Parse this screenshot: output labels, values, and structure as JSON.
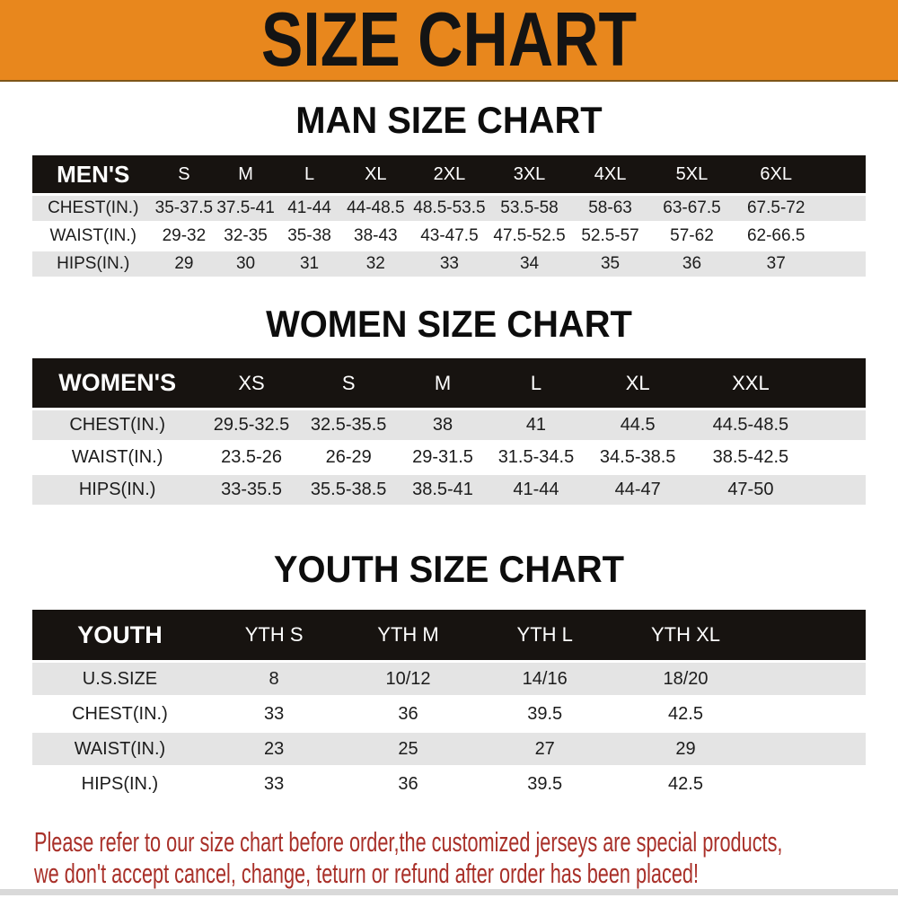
{
  "banner": {
    "title": "SIZE CHART"
  },
  "colors": {
    "banner_bg": "#e8871d",
    "banner_border": "#7d5518",
    "header_bar_bg": "#171310",
    "header_bar_text": "#ffffff",
    "row_alt_bg": "#e4e4e4",
    "body_text": "#1c1c1c",
    "notice_text": "#a93029",
    "bottom_strip": "#d9d9d9"
  },
  "sections": [
    {
      "id": "men",
      "title": "MAN SIZE CHART",
      "header": [
        "MEN'S",
        "S",
        "M",
        "L",
        "XL",
        "2XL",
        "3XL",
        "4XL",
        "5XL",
        "6XL"
      ],
      "rows": [
        [
          "CHEST(IN.)",
          "35-37.5",
          "37.5-41",
          "41-44",
          "44-48.5",
          "48.5-53.5",
          "53.5-58",
          "58-63",
          "63-67.5",
          "67.5-72"
        ],
        [
          "WAIST(IN.)",
          "29-32",
          "32-35",
          "35-38",
          "38-43",
          "43-47.5",
          "47.5-52.5",
          "52.5-57",
          "57-62",
          "62-66.5"
        ],
        [
          "HIPS(IN.)",
          "29",
          "30",
          "31",
          "32",
          "33",
          "34",
          "35",
          "36",
          "37"
        ]
      ]
    },
    {
      "id": "women",
      "title": "WOMEN SIZE CHART",
      "header": [
        "WOMEN'S",
        "XS",
        "S",
        "M",
        "L",
        "XL",
        "XXL"
      ],
      "rows": [
        [
          "CHEST(IN.)",
          "29.5-32.5",
          "32.5-35.5",
          "38",
          "41",
          "44.5",
          "44.5-48.5"
        ],
        [
          "WAIST(IN.)",
          "23.5-26",
          "26-29",
          "29-31.5",
          "31.5-34.5",
          "34.5-38.5",
          "38.5-42.5"
        ],
        [
          "HIPS(IN.)",
          "33-35.5",
          "35.5-38.5",
          "38.5-41",
          "41-44",
          "44-47",
          "47-50"
        ]
      ]
    },
    {
      "id": "youth",
      "title": "YOUTH SIZE CHART",
      "header": [
        "YOUTH",
        "YTH S",
        "YTH M",
        "YTH L",
        "YTH XL"
      ],
      "rows": [
        [
          "U.S.SIZE",
          "8",
          "10/12",
          "14/16",
          "18/20"
        ],
        [
          "CHEST(IN.)",
          "33",
          "36",
          "39.5",
          "42.5"
        ],
        [
          "WAIST(IN.)",
          "23",
          "25",
          "27",
          "29"
        ],
        [
          "HIPS(IN.)",
          "33",
          "36",
          "39.5",
          "42.5"
        ]
      ]
    }
  ],
  "footer": {
    "line1": "Please refer to our size chart before order,the customized jerseys are special products,",
    "line2": "we don't accept cancel, change, teturn or refund after order has been placed!"
  }
}
